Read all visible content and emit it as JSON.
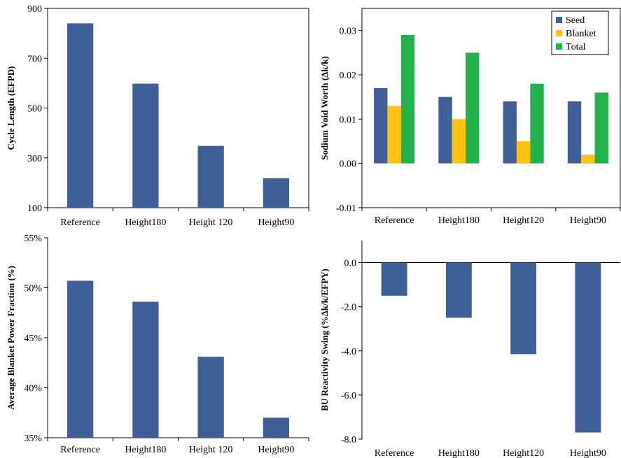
{
  "chart_data": [
    {
      "type": "bar",
      "categories": [
        "Reference",
        "Height180",
        "Height 120",
        "Height90"
      ],
      "values": [
        840,
        598,
        348,
        218
      ],
      "ylabel": "Cycle Length (EFPD)",
      "ylim": [
        100,
        900
      ],
      "yticks": [
        "100",
        "300",
        "500",
        "700",
        "900"
      ],
      "color": "#3e5f98"
    },
    {
      "type": "bar",
      "categories": [
        "Reference",
        "Height180",
        "Height120",
        "Height90"
      ],
      "series": [
        {
          "name": "Seed",
          "values": [
            0.017,
            0.015,
            0.014,
            0.014
          ],
          "color": "#3e5f98"
        },
        {
          "name": "Blanket",
          "values": [
            0.013,
            0.01,
            0.005,
            0.002
          ],
          "color": "#ffc20e"
        },
        {
          "name": "Total",
          "values": [
            0.029,
            0.025,
            0.018,
            0.016
          ],
          "color": "#22b24c"
        }
      ],
      "ylabel": "Sodium Void Worth (Δk/k)",
      "ylim": [
        -0.01,
        0.035
      ],
      "yticks": [
        "-0.01",
        "0.00",
        "0.01",
        "0.02",
        "0.03"
      ],
      "legend": "top-right"
    },
    {
      "type": "bar",
      "categories": [
        "Reference",
        "Height180",
        "Height 120",
        "Height90"
      ],
      "values": [
        50.7,
        48.6,
        43.1,
        37.0
      ],
      "ylabel": "Average Blanket Power Fraction (%)",
      "ylim": [
        35,
        55
      ],
      "yticks": [
        "35%",
        "40%",
        "45%",
        "50%",
        "55%"
      ],
      "color": "#3e5f98"
    },
    {
      "type": "bar",
      "categories": [
        "Reference",
        "Height180",
        "Height120",
        "Height90"
      ],
      "values": [
        -1.5,
        -2.5,
        -4.15,
        -7.7
      ],
      "ylabel": "BU Reactivity Swing (%Δk/k/EFPY)",
      "ylim": [
        -8.0,
        1.0
      ],
      "yticks": [
        "-8.0",
        "-6.0",
        "-4.0",
        "-2.0",
        "0.0"
      ],
      "color": "#3e5f98"
    }
  ]
}
